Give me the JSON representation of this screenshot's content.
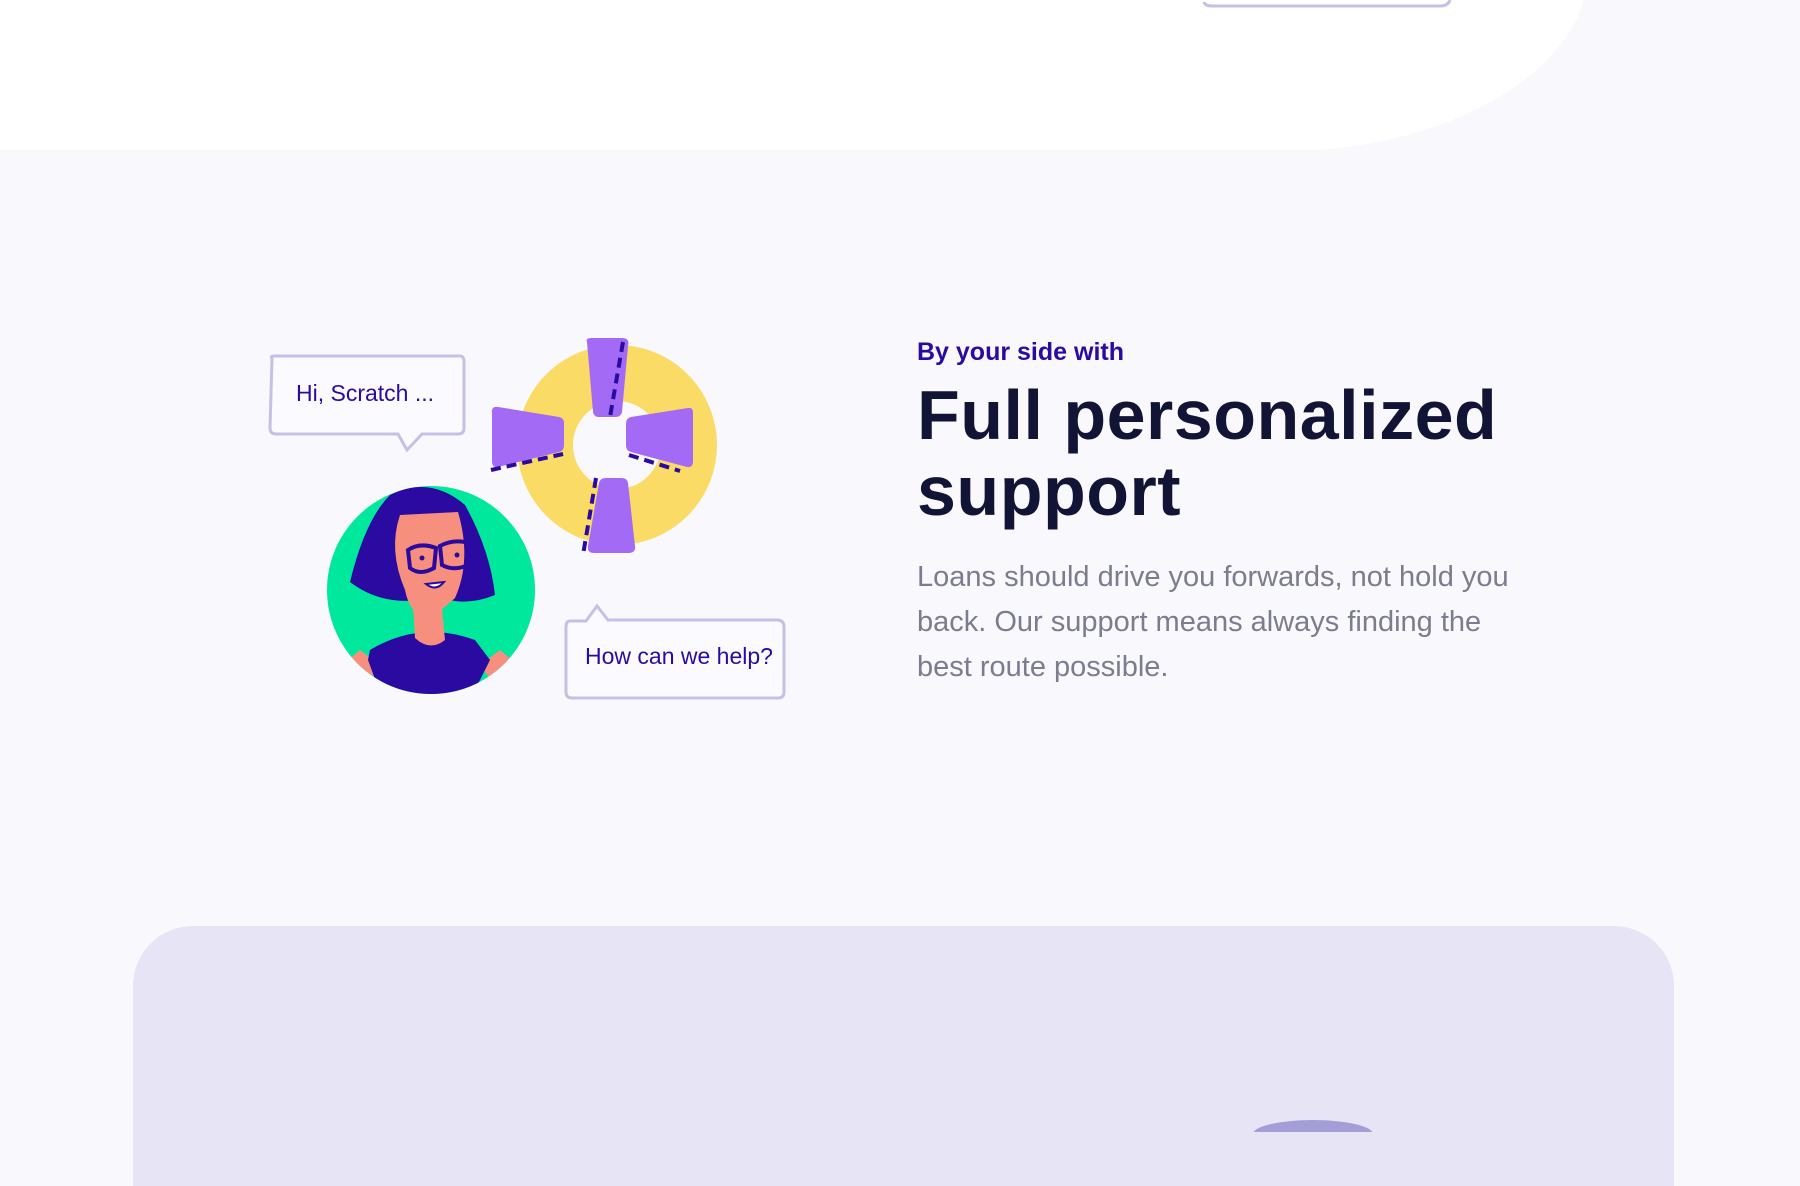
{
  "illustration": {
    "bubble_greeting": "Hi, Scratch ...",
    "bubble_help": "How can we help?",
    "colors": {
      "lifebuoy_ring": "#fadb66",
      "lifebuoy_bands": "#a36af5",
      "avatar_bg": "#00e89c",
      "hair": "#2a0aa0",
      "skin": "#f78f7e",
      "bubble_border": "#c5c1e6"
    }
  },
  "feature": {
    "eyebrow": "By your side with",
    "heading_line1": "Full personalized",
    "heading_line2": "support",
    "description": "Loans should drive you forwards, not hold you back. Our support means always finding the best route possible."
  },
  "colors": {
    "accent": "#2a0aa0",
    "heading": "#121436",
    "body_text": "#7b7c8e",
    "card_bg": "#e7e5f5"
  }
}
